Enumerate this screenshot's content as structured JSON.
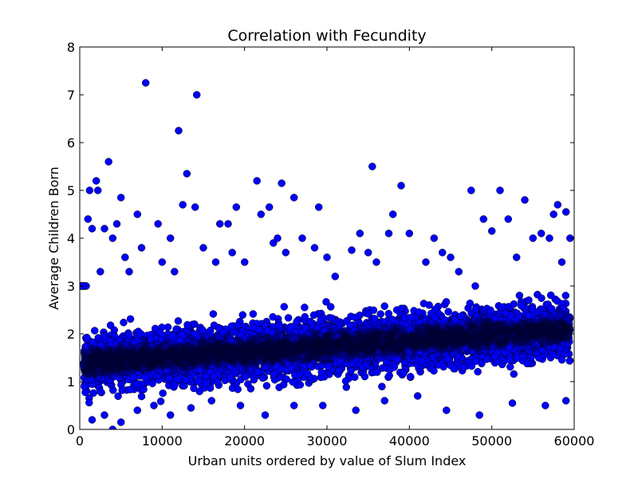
{
  "chart_data": {
    "type": "scatter",
    "title": "Correlation with Fecundity",
    "xlabel": "Urban units ordered by value of Slum Index",
    "ylabel": "Average Children Born",
    "xlim": [
      0,
      60000
    ],
    "ylim": [
      0,
      8
    ],
    "xticks": [
      0,
      10000,
      20000,
      30000,
      40000,
      50000,
      60000
    ],
    "yticks": [
      0,
      1,
      2,
      3,
      4,
      5,
      6,
      7,
      8
    ],
    "grid": false,
    "marker_color": "#0000ff",
    "marker_edge_color": "#000000",
    "series": [
      {
        "x": [
          300,
          1000,
          1200,
          1500,
          2000,
          2200,
          2500,
          3000,
          3500,
          4000,
          4000,
          4500,
          5000,
          5500,
          6000,
          7000,
          7500,
          8000,
          9500,
          10000,
          11000,
          11500,
          12000,
          12500,
          13000,
          14000,
          14200,
          15000,
          16500,
          17000,
          18000,
          18500,
          19000,
          20000,
          21500,
          22000,
          23000,
          23500,
          24000,
          24500,
          25000,
          26000,
          27000,
          28500,
          29000,
          30000,
          31000,
          33000,
          34000,
          35000,
          35500,
          36000,
          37500,
          38000,
          39000,
          40000,
          42000,
          43000,
          44000,
          45000,
          46000,
          47500,
          48000,
          49000,
          50000,
          51000,
          52000,
          53000,
          54000,
          55000,
          56000,
          57000,
          57500,
          58000,
          58500,
          59000,
          59500,
          1500,
          3000,
          5000,
          7000,
          9000,
          11000,
          13500,
          16000,
          19500,
          22500,
          26000,
          29500,
          33500,
          37000,
          41000,
          44500,
          48500,
          52500,
          56500,
          59000
        ],
        "y": [
          3.0,
          4.4,
          5.0,
          4.2,
          5.2,
          5.0,
          3.3,
          4.2,
          5.6,
          4.0,
          0.0,
          4.3,
          4.85,
          3.6,
          3.3,
          4.5,
          3.8,
          7.25,
          4.3,
          3.5,
          4.0,
          3.3,
          6.25,
          4.7,
          5.35,
          4.65,
          7.0,
          3.8,
          3.5,
          4.3,
          4.3,
          3.7,
          4.65,
          3.5,
          5.2,
          4.5,
          4.65,
          3.9,
          4.0,
          5.15,
          3.7,
          4.85,
          4.0,
          3.8,
          4.65,
          3.6,
          3.2,
          3.75,
          4.1,
          3.7,
          5.5,
          3.5,
          4.1,
          4.5,
          5.1,
          4.1,
          3.5,
          4.0,
          3.7,
          3.6,
          3.3,
          5.0,
          3.0,
          4.4,
          4.15,
          5.0,
          4.4,
          3.6,
          4.8,
          4.0,
          4.1,
          4.0,
          4.5,
          4.7,
          3.5,
          4.55,
          4.0,
          0.2,
          0.3,
          0.15,
          0.4,
          0.5,
          0.3,
          0.45,
          0.6,
          0.5,
          0.3,
          0.5,
          0.5,
          0.4,
          0.6,
          0.7,
          0.4,
          0.3,
          0.55,
          0.5,
          0.6
        ]
      }
    ],
    "dense_band": {
      "description_visible": false,
      "x_start": 500,
      "x_end": 59500,
      "center_start": 1.4,
      "center_end": 2.1,
      "spread": 0.55
    }
  }
}
